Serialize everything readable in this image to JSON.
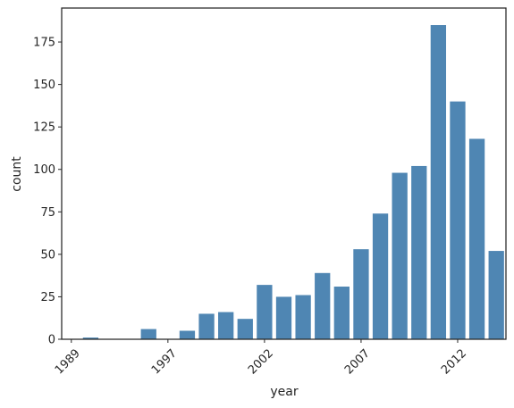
{
  "chart_data": {
    "type": "bar",
    "xlabel": "year",
    "ylabel": "count",
    "ylim": [
      0,
      195
    ],
    "yticks": [
      0,
      25,
      50,
      75,
      100,
      125,
      150,
      175
    ],
    "xtick_labels": [
      "1989",
      "1997",
      "2002",
      "2007",
      "2012"
    ],
    "categories": [
      "1989",
      "1990",
      "1992",
      "1994",
      "1996",
      "1997",
      "1998",
      "1999",
      "2000",
      "2001",
      "2002",
      "2003",
      "2004",
      "2005",
      "2006",
      "2007",
      "2008",
      "2009",
      "2010",
      "2011",
      "2012",
      "2013",
      "2014"
    ],
    "values": [
      0,
      1,
      0,
      0,
      6,
      0,
      5,
      15,
      16,
      12,
      32,
      25,
      26,
      39,
      31,
      53,
      74,
      98,
      102,
      185,
      140,
      118,
      52
    ],
    "bar_color": "#4f86b3",
    "grid": false
  }
}
